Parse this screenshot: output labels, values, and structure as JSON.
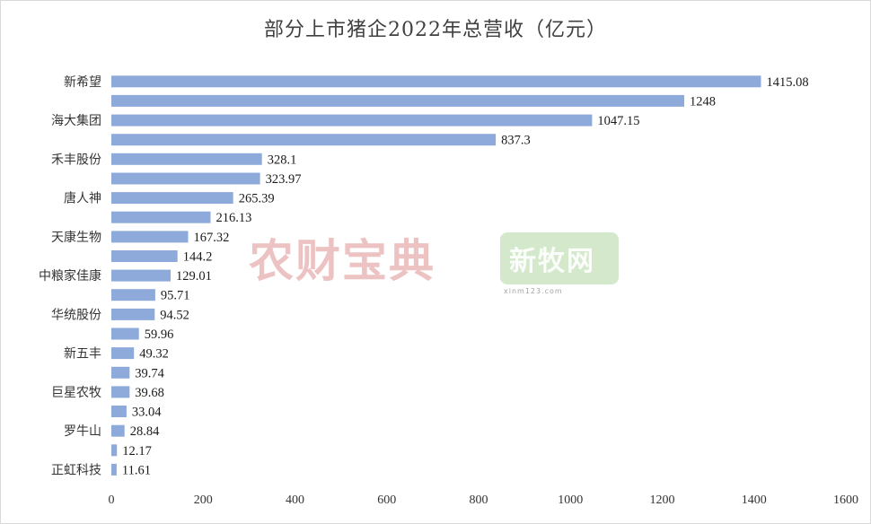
{
  "chart_data": {
    "type": "bar",
    "orientation": "horizontal",
    "title": "部分上市猪企2022年总营收（亿元）",
    "xlim": [
      0,
      1600
    ],
    "xticks": [
      0,
      200,
      400,
      600,
      800,
      1000,
      1200,
      1400,
      1600
    ],
    "bar_color": "#8eaadb",
    "categories": [
      "新希望",
      "",
      "海大集团",
      "",
      "禾丰股份",
      "",
      "唐人神",
      "",
      "天康生物",
      "",
      "中粮家佳康",
      "",
      "华统股份",
      "",
      "新五丰",
      "",
      "巨星农牧",
      "",
      "罗牛山",
      "",
      "正虹科技"
    ],
    "values": [
      1415.08,
      1248,
      1047.15,
      837.3,
      328.1,
      323.97,
      265.39,
      216.13,
      167.32,
      144.2,
      129.01,
      95.71,
      94.52,
      59.96,
      49.32,
      39.74,
      39.68,
      33.04,
      28.84,
      12.17,
      11.61
    ],
    "value_labels": [
      "1415.08",
      "1248",
      "1047.15",
      "837.3",
      "328.1",
      "323.97",
      "265.39",
      "216.13",
      "167.32",
      "144.2",
      "129.01",
      "95.71",
      "94.52",
      "59.96",
      "49.32",
      "39.74",
      "39.68",
      "33.04",
      "28.84",
      "12.17",
      "11.61"
    ]
  },
  "watermarks": {
    "left": "农财宝典",
    "right": "新牧网",
    "right_sub": "xinm123.com"
  }
}
